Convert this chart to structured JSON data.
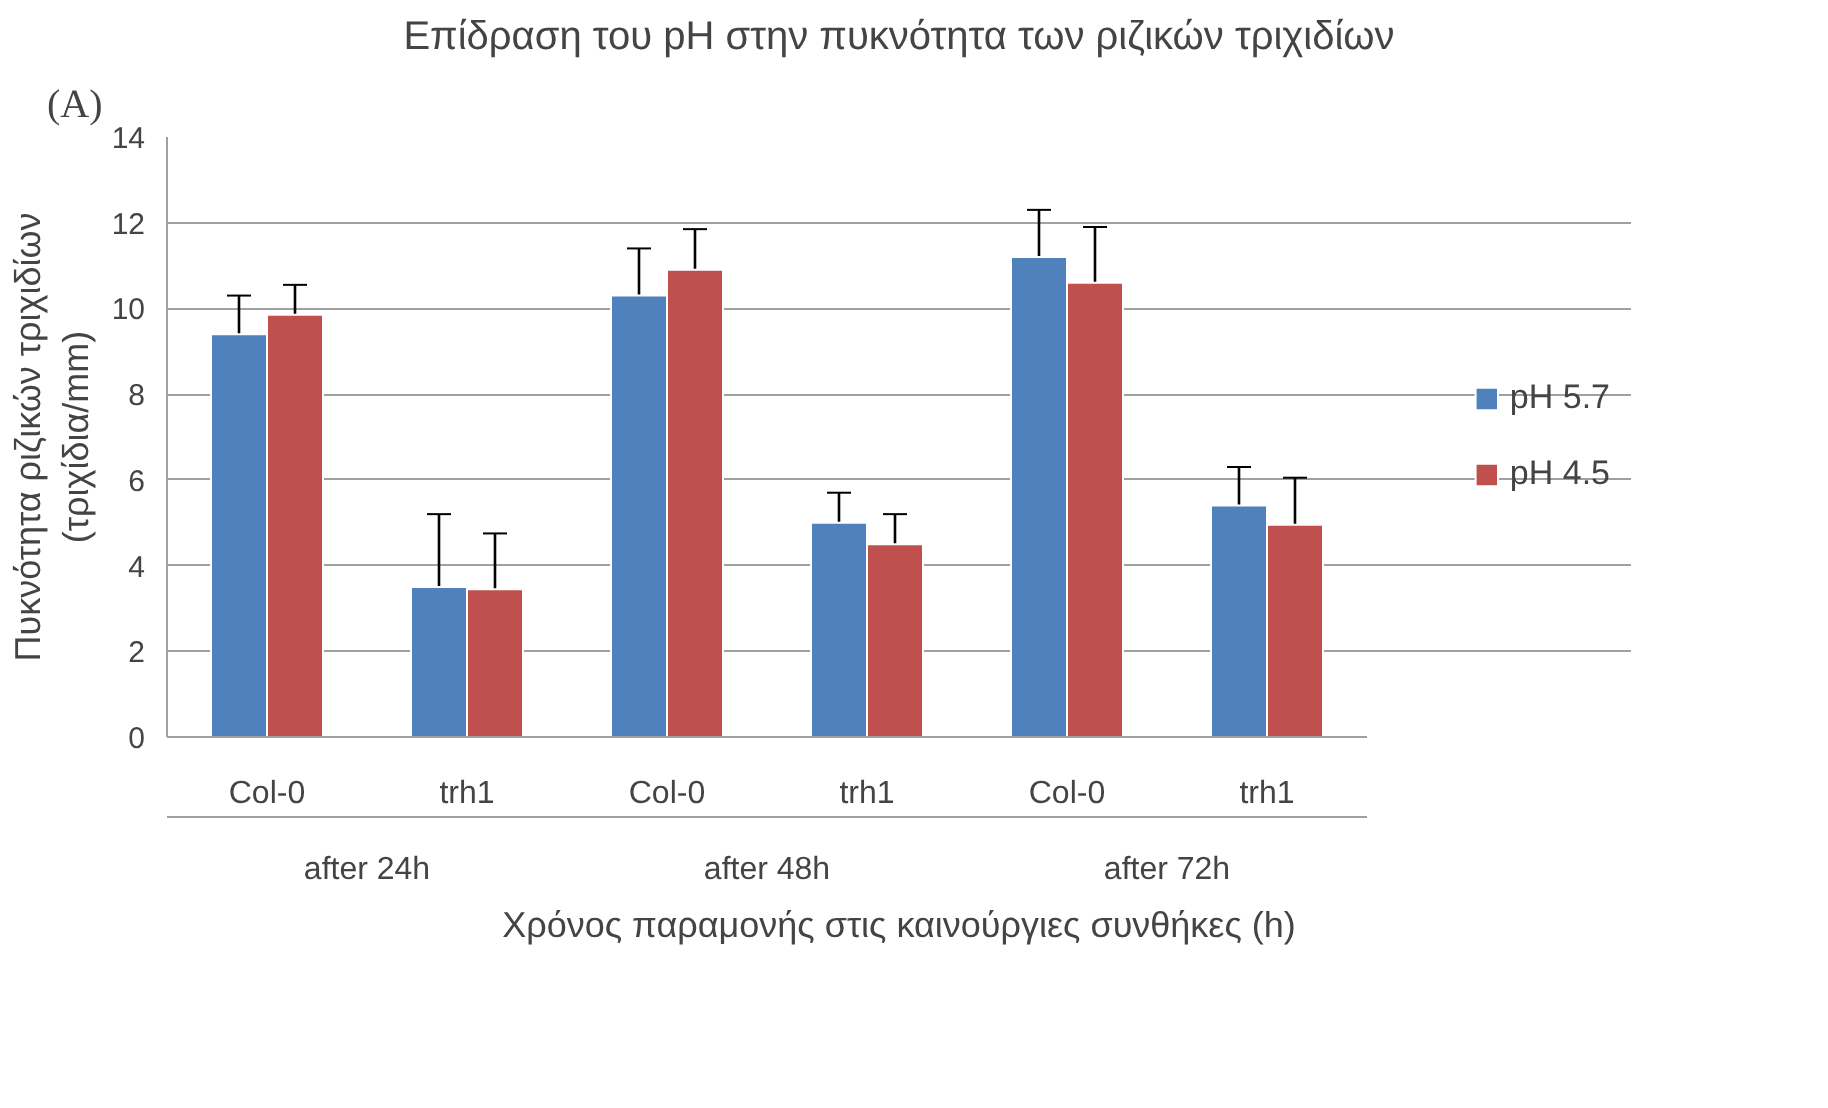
{
  "chart_data": {
    "type": "bar",
    "title": "Επίδραση του pH στην πυκνότητα των ριζικών τριχιδίων",
    "xlabel": "Χρόνος παραμονής στις καινούργιες συνθήκες (h)",
    "ylabel": "Πυκνότητα ριζικών τριχιδίων\n(τριχίδια/mm)",
    "categories": [
      "Col-0",
      "trh1",
      "Col-0",
      "trh1",
      "Col-0",
      "trh1"
    ],
    "annotations": [
      "(A)",
      "after 24h",
      "after 48h",
      "after 72h"
    ],
    "series": [
      {
        "name": "pH 5.7",
        "color": "#4f81bd",
        "values": [
          9.4,
          3.5,
          10.3,
          5.0,
          11.2,
          5.4
        ],
        "errors": [
          0.9,
          1.7,
          1.1,
          0.7,
          1.1,
          0.9
        ]
      },
      {
        "name": "pH 4.5",
        "color": "#c0504d",
        "values": [
          9.85,
          3.45,
          10.9,
          4.5,
          10.6,
          4.95
        ],
        "errors": [
          0.7,
          1.3,
          0.95,
          0.7,
          1.3,
          1.1
        ]
      }
    ],
    "ylim": [
      0,
      14
    ],
    "yticks": [
      0,
      2,
      4,
      6,
      8,
      10,
      12,
      14
    ],
    "grid": "y",
    "legend": "right"
  }
}
